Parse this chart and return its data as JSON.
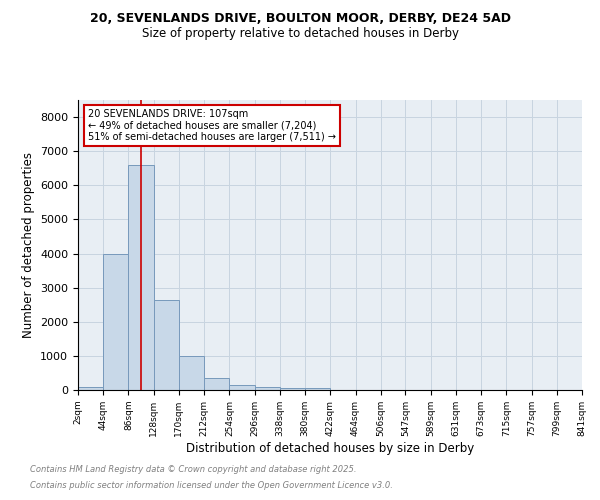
{
  "title1": "20, SEVENLANDS DRIVE, BOULTON MOOR, DERBY, DE24 5AD",
  "title2": "Size of property relative to detached houses in Derby",
  "xlabel": "Distribution of detached houses by size in Derby",
  "ylabel": "Number of detached properties",
  "bar_values": [
    100,
    4000,
    6600,
    2650,
    1000,
    350,
    150,
    75,
    50,
    50,
    0,
    0,
    0,
    0,
    0,
    0,
    0,
    0,
    0,
    0
  ],
  "bin_edges": [
    2,
    44,
    86,
    128,
    170,
    212,
    254,
    296,
    338,
    380,
    422,
    464,
    506,
    547,
    589,
    631,
    673,
    715,
    757,
    799,
    841
  ],
  "x_labels": [
    "2sqm",
    "44sqm",
    "86sqm",
    "128sqm",
    "170sqm",
    "212sqm",
    "254sqm",
    "296sqm",
    "338sqm",
    "380sqm",
    "422sqm",
    "464sqm",
    "506sqm",
    "547sqm",
    "589sqm",
    "631sqm",
    "673sqm",
    "715sqm",
    "757sqm",
    "799sqm",
    "841sqm"
  ],
  "bar_color": "#c8d8e8",
  "bar_edge_color": "#7799bb",
  "red_line_x": 107,
  "annotation_title": "20 SEVENLANDS DRIVE: 107sqm",
  "annotation_line1": "← 49% of detached houses are smaller (7,204)",
  "annotation_line2": "51% of semi-detached houses are larger (7,511) →",
  "annotation_box_color": "#cc0000",
  "grid_color": "#c8d4e0",
  "background_color": "#e8eef4",
  "ylim": [
    0,
    8500
  ],
  "yticks": [
    0,
    1000,
    2000,
    3000,
    4000,
    5000,
    6000,
    7000,
    8000
  ],
  "footnote1": "Contains HM Land Registry data © Crown copyright and database right 2025.",
  "footnote2": "Contains public sector information licensed under the Open Government Licence v3.0."
}
